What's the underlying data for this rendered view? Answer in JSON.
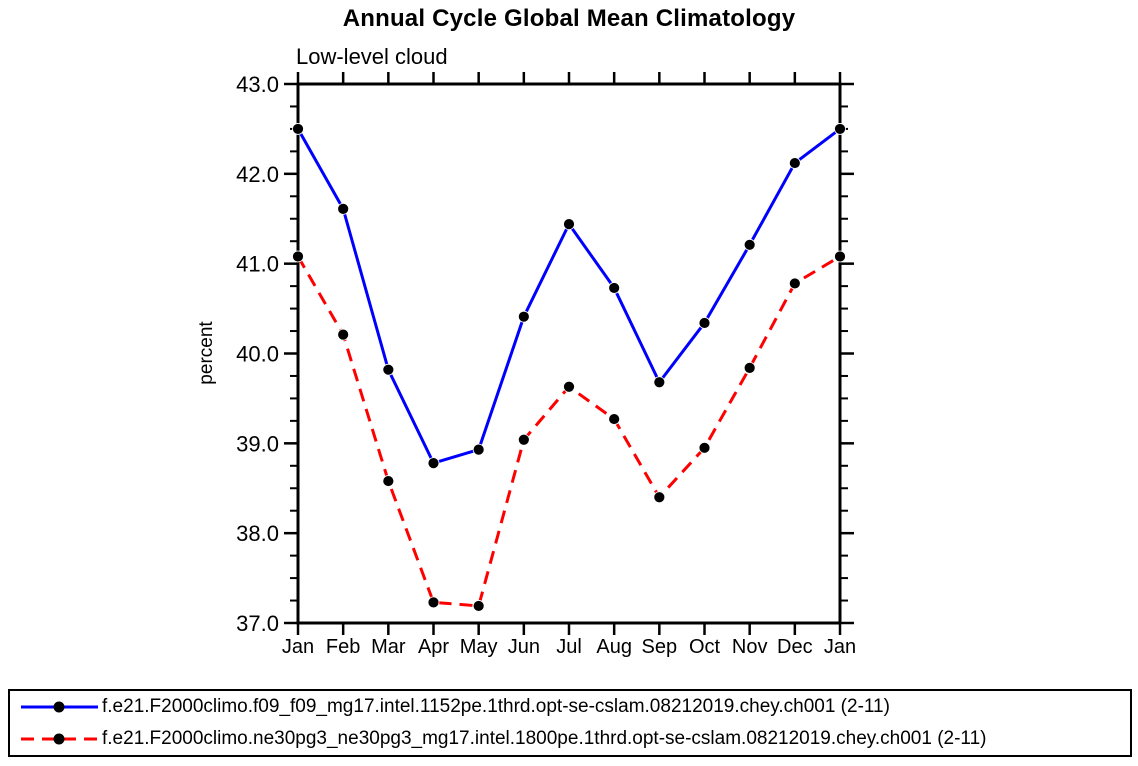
{
  "header": {
    "title": "Annual Cycle Global Mean Climatology",
    "subtitle": "Low-level cloud"
  },
  "colors": {
    "series1": "#0000ff",
    "series2": "#ff0000",
    "marker": "#000000",
    "axis": "#000000"
  },
  "chart_data": {
    "type": "line",
    "title": "Annual Cycle Global Mean Climatology",
    "subtitle": "Low-level cloud",
    "xlabel": "",
    "ylabel": "percent",
    "categories": [
      "Jan",
      "Feb",
      "Mar",
      "Apr",
      "May",
      "Jun",
      "Jul",
      "Aug",
      "Sep",
      "Oct",
      "Nov",
      "Dec",
      "Jan"
    ],
    "ylim": [
      37.0,
      43.0
    ],
    "ytick_major": [
      37.0,
      38.0,
      39.0,
      40.0,
      41.0,
      42.0,
      43.0
    ],
    "ytick_labels": [
      "37.0",
      "38.0",
      "39.0",
      "40.0",
      "41.0",
      "42.0",
      "43.0"
    ],
    "ytick_minor_step": 0.25,
    "grid": false,
    "legend_position": "bottom",
    "series": [
      {
        "name": "f.e21.F2000climo.f09_f09_mg17.intel.1152pe.1thrd.opt-se-cslam.08212019.chey.ch001 (2-11)",
        "color": "#0000ff",
        "line_style": "solid",
        "marker": "circle",
        "marker_color": "#000000",
        "values": [
          42.5,
          41.61,
          39.82,
          38.78,
          38.93,
          40.41,
          41.44,
          40.73,
          39.68,
          40.34,
          41.21,
          42.12,
          42.5
        ]
      },
      {
        "name": "f.e21.F2000climo.ne30pg3_ne30pg3_mg17.intel.1800pe.1thrd.opt-se-cslam.08212019.chey.ch001 (2-11)",
        "color": "#ff0000",
        "line_style": "dashed",
        "marker": "circle",
        "marker_color": "#000000",
        "values": [
          41.08,
          40.21,
          38.58,
          37.23,
          37.19,
          39.04,
          39.63,
          39.27,
          38.4,
          38.95,
          39.84,
          40.78,
          41.08
        ]
      }
    ]
  }
}
